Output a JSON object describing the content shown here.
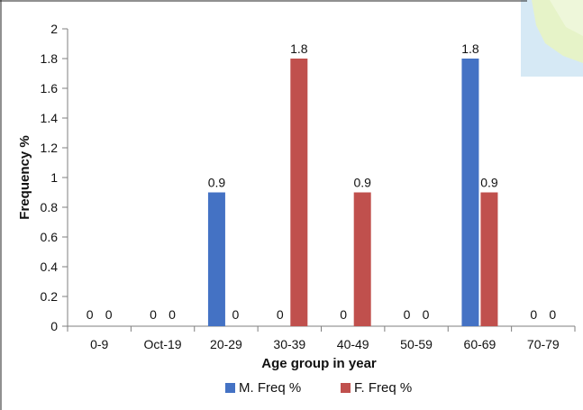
{
  "chart_data": {
    "type": "bar",
    "title": "",
    "xlabel": "Age group in year",
    "ylabel": "Frequency %",
    "categories": [
      "0-9",
      "Oct-19",
      "20-29",
      "30-39",
      "40-49",
      "50-59",
      "60-69",
      "70-79"
    ],
    "series": [
      {
        "name": "M. Freq %",
        "color": "#4472c4",
        "values": [
          0,
          0,
          0.9,
          0,
          0,
          0,
          1.8,
          0
        ]
      },
      {
        "name": "F. Freq %",
        "color": "#c0504d",
        "values": [
          0,
          0,
          0,
          1.8,
          0.9,
          0,
          0.9,
          0
        ]
      }
    ],
    "data_labels": [
      [
        "0",
        "0",
        "0.9",
        "0",
        "0",
        "0",
        "1.8",
        "0"
      ],
      [
        "0",
        "0",
        "0",
        "1.8",
        "0.9",
        "0",
        "0.9",
        "0"
      ]
    ],
    "ylim": [
      0,
      2
    ],
    "yticks": [
      "0",
      "0.2",
      "0.4",
      "0.6",
      "0.8",
      "1",
      "1.2",
      "1.4",
      "1.6",
      "1.8",
      "2"
    ],
    "grid": false,
    "legend": "bottom-center"
  }
}
